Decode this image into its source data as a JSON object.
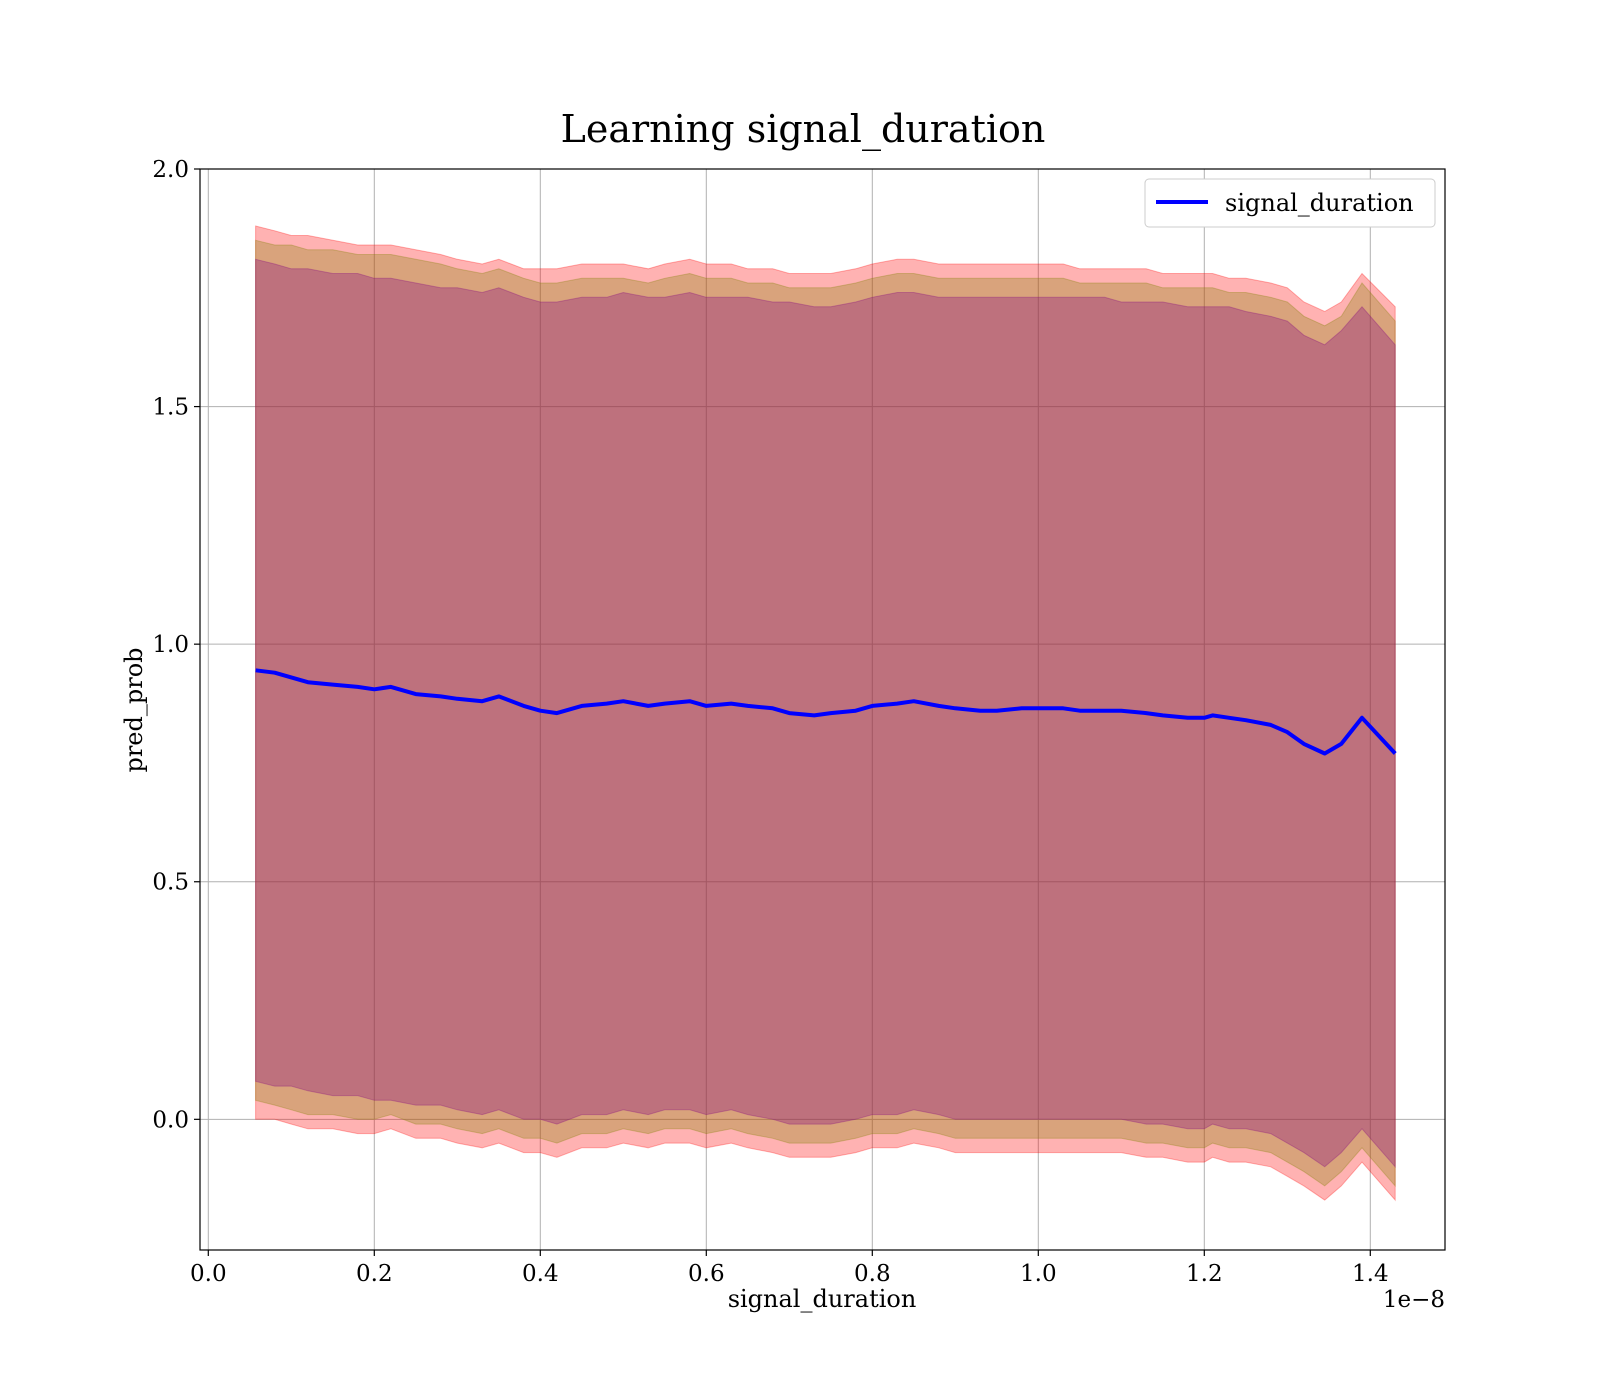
{
  "chart_data": {
    "type": "line",
    "title": "Learning signal_duration",
    "xlabel": "signal_duration",
    "ylabel": "pred_prob",
    "x_offset_label": "1e−8",
    "xlim": [
      -0.01,
      1.49
    ],
    "ylim": [
      -0.275,
      2.0
    ],
    "x_ticks": [
      0.0,
      0.2,
      0.4,
      0.6,
      0.8,
      1.0,
      1.2,
      1.4
    ],
    "x_tick_labels": [
      "0.0",
      "0.2",
      "0.4",
      "0.6",
      "0.8",
      "1.0",
      "1.2",
      "1.4"
    ],
    "y_ticks": [
      0.0,
      0.5,
      1.0,
      1.5,
      2.0
    ],
    "y_tick_labels": [
      "0.0",
      "0.5",
      "1.0",
      "1.5",
      "2.0"
    ],
    "grid": true,
    "legend_position": "top-right",
    "x": [
      0.057,
      0.08,
      0.1,
      0.12,
      0.15,
      0.18,
      0.2,
      0.22,
      0.25,
      0.28,
      0.3,
      0.33,
      0.35,
      0.38,
      0.4,
      0.42,
      0.45,
      0.48,
      0.5,
      0.53,
      0.55,
      0.58,
      0.6,
      0.63,
      0.65,
      0.68,
      0.7,
      0.73,
      0.75,
      0.78,
      0.8,
      0.83,
      0.85,
      0.88,
      0.9,
      0.93,
      0.95,
      0.98,
      1.0,
      1.03,
      1.05,
      1.08,
      1.1,
      1.13,
      1.15,
      1.18,
      1.2,
      1.21,
      1.23,
      1.25,
      1.28,
      1.3,
      1.32,
      1.345,
      1.365,
      1.39,
      1.43
    ],
    "series": [
      {
        "name": "signal_duration",
        "color": "#0000ff",
        "values": [
          0.945,
          0.94,
          0.93,
          0.92,
          0.915,
          0.91,
          0.905,
          0.91,
          0.895,
          0.89,
          0.885,
          0.88,
          0.89,
          0.87,
          0.86,
          0.855,
          0.87,
          0.875,
          0.88,
          0.87,
          0.875,
          0.88,
          0.87,
          0.875,
          0.87,
          0.865,
          0.855,
          0.85,
          0.855,
          0.86,
          0.87,
          0.875,
          0.88,
          0.87,
          0.865,
          0.86,
          0.86,
          0.865,
          0.865,
          0.865,
          0.86,
          0.86,
          0.86,
          0.855,
          0.85,
          0.845,
          0.845,
          0.85,
          0.845,
          0.84,
          0.83,
          0.815,
          0.79,
          0.77,
          0.79,
          0.845,
          0.77
        ]
      }
    ],
    "bands": [
      {
        "color": "#ff0000",
        "opacity": 0.3,
        "upper": [
          1.88,
          1.87,
          1.86,
          1.86,
          1.85,
          1.84,
          1.84,
          1.84,
          1.83,
          1.82,
          1.81,
          1.8,
          1.81,
          1.79,
          1.79,
          1.79,
          1.8,
          1.8,
          1.8,
          1.79,
          1.8,
          1.81,
          1.8,
          1.8,
          1.79,
          1.79,
          1.78,
          1.78,
          1.78,
          1.79,
          1.8,
          1.81,
          1.81,
          1.8,
          1.8,
          1.8,
          1.8,
          1.8,
          1.8,
          1.8,
          1.79,
          1.79,
          1.79,
          1.79,
          1.78,
          1.78,
          1.78,
          1.78,
          1.77,
          1.77,
          1.76,
          1.75,
          1.72,
          1.7,
          1.72,
          1.78,
          1.71
        ],
        "lower": [
          0.0,
          0.0,
          -0.01,
          -0.02,
          -0.02,
          -0.03,
          -0.03,
          -0.02,
          -0.04,
          -0.04,
          -0.05,
          -0.06,
          -0.05,
          -0.07,
          -0.07,
          -0.08,
          -0.06,
          -0.06,
          -0.05,
          -0.06,
          -0.05,
          -0.05,
          -0.06,
          -0.05,
          -0.06,
          -0.07,
          -0.08,
          -0.08,
          -0.08,
          -0.07,
          -0.06,
          -0.06,
          -0.05,
          -0.06,
          -0.07,
          -0.07,
          -0.07,
          -0.07,
          -0.07,
          -0.07,
          -0.07,
          -0.07,
          -0.07,
          -0.08,
          -0.08,
          -0.09,
          -0.09,
          -0.08,
          -0.09,
          -0.09,
          -0.1,
          -0.12,
          -0.14,
          -0.17,
          -0.14,
          -0.09,
          -0.17
        ]
      },
      {
        "color": "#808000",
        "opacity": 0.3,
        "upper": [
          1.85,
          1.84,
          1.84,
          1.83,
          1.83,
          1.82,
          1.82,
          1.82,
          1.81,
          1.8,
          1.79,
          1.78,
          1.79,
          1.77,
          1.76,
          1.76,
          1.77,
          1.77,
          1.77,
          1.76,
          1.77,
          1.78,
          1.77,
          1.77,
          1.76,
          1.76,
          1.75,
          1.75,
          1.75,
          1.76,
          1.77,
          1.78,
          1.78,
          1.77,
          1.77,
          1.77,
          1.77,
          1.77,
          1.77,
          1.77,
          1.76,
          1.76,
          1.76,
          1.76,
          1.75,
          1.75,
          1.75,
          1.75,
          1.74,
          1.74,
          1.73,
          1.72,
          1.69,
          1.67,
          1.69,
          1.76,
          1.68
        ],
        "lower": [
          0.04,
          0.03,
          0.02,
          0.01,
          0.01,
          0.0,
          0.0,
          0.01,
          -0.01,
          -0.01,
          -0.02,
          -0.03,
          -0.02,
          -0.04,
          -0.04,
          -0.05,
          -0.03,
          -0.03,
          -0.02,
          -0.03,
          -0.02,
          -0.02,
          -0.03,
          -0.02,
          -0.03,
          -0.04,
          -0.05,
          -0.05,
          -0.05,
          -0.04,
          -0.03,
          -0.03,
          -0.02,
          -0.03,
          -0.04,
          -0.04,
          -0.04,
          -0.04,
          -0.04,
          -0.04,
          -0.04,
          -0.04,
          -0.04,
          -0.05,
          -0.05,
          -0.06,
          -0.06,
          -0.05,
          -0.06,
          -0.06,
          -0.07,
          -0.09,
          -0.11,
          -0.14,
          -0.11,
          -0.06,
          -0.14
        ]
      },
      {
        "color": "#800080",
        "opacity": 0.3,
        "upper": [
          1.81,
          1.8,
          1.79,
          1.79,
          1.78,
          1.78,
          1.77,
          1.77,
          1.76,
          1.75,
          1.75,
          1.74,
          1.75,
          1.73,
          1.72,
          1.72,
          1.73,
          1.73,
          1.74,
          1.73,
          1.73,
          1.74,
          1.73,
          1.73,
          1.73,
          1.72,
          1.72,
          1.71,
          1.71,
          1.72,
          1.73,
          1.74,
          1.74,
          1.73,
          1.73,
          1.73,
          1.73,
          1.73,
          1.73,
          1.73,
          1.73,
          1.73,
          1.72,
          1.72,
          1.72,
          1.71,
          1.71,
          1.71,
          1.71,
          1.7,
          1.69,
          1.68,
          1.65,
          1.63,
          1.66,
          1.71,
          1.63
        ],
        "lower": [
          0.08,
          0.07,
          0.07,
          0.06,
          0.05,
          0.05,
          0.04,
          0.04,
          0.03,
          0.03,
          0.02,
          0.01,
          0.02,
          0.0,
          0.0,
          -0.01,
          0.01,
          0.01,
          0.02,
          0.01,
          0.02,
          0.02,
          0.01,
          0.02,
          0.01,
          0.0,
          -0.01,
          -0.01,
          -0.01,
          0.0,
          0.01,
          0.01,
          0.02,
          0.01,
          0.0,
          0.0,
          0.0,
          0.0,
          0.0,
          0.0,
          0.0,
          0.0,
          0.0,
          -0.01,
          -0.01,
          -0.02,
          -0.02,
          -0.01,
          -0.02,
          -0.02,
          -0.03,
          -0.05,
          -0.07,
          -0.1,
          -0.07,
          -0.02,
          -0.1
        ]
      }
    ]
  }
}
